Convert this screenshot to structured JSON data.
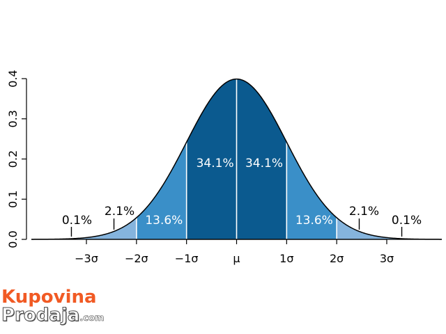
{
  "chart_data": {
    "type": "area",
    "title": "",
    "xlabel": "",
    "ylabel": "",
    "distribution": {
      "family": "normal",
      "mean": 0,
      "sd": 1
    },
    "xlim": [
      -4.1,
      4.1
    ],
    "ylim": [
      0,
      0.4
    ],
    "y_ticks": [
      0.0,
      0.1,
      0.2,
      0.3,
      0.4
    ],
    "y_tick_labels": [
      "0.0",
      "0.1",
      "0.2",
      "0.3",
      "0.4"
    ],
    "x_ticks": [
      -3,
      -2,
      -1,
      0,
      1,
      2,
      3
    ],
    "x_tick_labels": [
      "−3σ",
      "−2σ",
      "−1σ",
      "μ",
      "1σ",
      "2σ",
      "3σ"
    ],
    "bands": [
      {
        "from": -4.1,
        "to": -3,
        "percent": "0.1%",
        "color": "#85b4dd"
      },
      {
        "from": -3,
        "to": -2,
        "percent": "2.1%",
        "color": "#85b4dd"
      },
      {
        "from": -2,
        "to": -1,
        "percent": "13.6%",
        "color": "#3a8fc8"
      },
      {
        "from": -1,
        "to": 0,
        "percent": "34.1%",
        "color": "#0b5a8f"
      },
      {
        "from": 0,
        "to": 1,
        "percent": "34.1%",
        "color": "#0b5a8f"
      },
      {
        "from": 1,
        "to": 2,
        "percent": "13.6%",
        "color": "#3a8fc8"
      },
      {
        "from": 2,
        "to": 3,
        "percent": "2.1%",
        "color": "#85b4dd"
      },
      {
        "from": 3,
        "to": 4.1,
        "percent": "0.1%",
        "color": "#85b4dd"
      }
    ],
    "tail_labels": [
      {
        "text": "0.1%",
        "x": -3.3
      },
      {
        "text": "2.1%",
        "x": -2.45
      },
      {
        "text": "2.1%",
        "x": 2.45
      },
      {
        "text": "0.1%",
        "x": 3.3
      }
    ],
    "band_labels": [
      {
        "text": "13.6%",
        "x": -1.45,
        "y": 0.038
      },
      {
        "text": "34.1%",
        "x": -0.43,
        "y": 0.18
      },
      {
        "text": "34.1%",
        "x": 0.55,
        "y": 0.18
      },
      {
        "text": "13.6%",
        "x": 1.55,
        "y": 0.038
      }
    ],
    "grid": false,
    "legend": "none"
  },
  "watermark": {
    "line1": "Kupovina",
    "line2": "Prodaja",
    "domain": ".com"
  }
}
